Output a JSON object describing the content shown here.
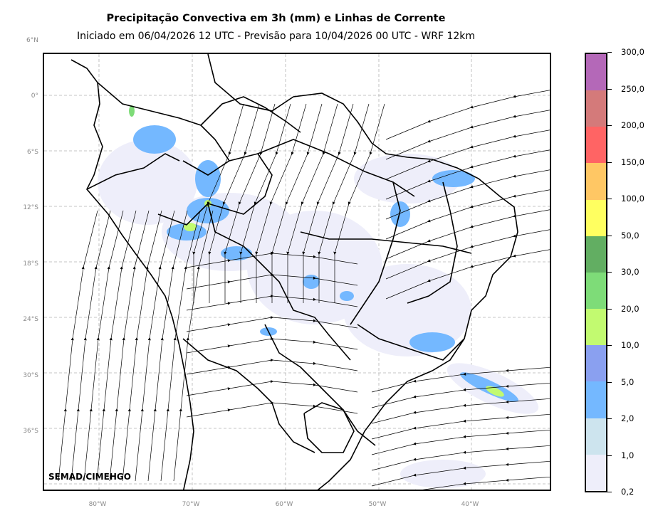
{
  "title": "Precipitação Convectiva em 3h (mm) e Linhas de Corrente",
  "subtitle": "Iniciado em 06/04/2026 12 UTC - Previsão para 10/04/2026 00 UTC - WRF 12km",
  "credit": "SEMAD/CIMEHGO",
  "lat_labels": [
    "6°N",
    "0°",
    "6°S",
    "12°S",
    "18°S",
    "24°S",
    "30°S",
    "36°S"
  ],
  "lon_labels": [
    "80°W",
    "70°W",
    "60°W",
    "50°W",
    "40°W"
  ],
  "colorbar": {
    "labels": [
      "0,2",
      "1,0",
      "2,0",
      "5,0",
      "10,0",
      "20,0",
      "30,0",
      "50,0",
      "100,0",
      "150,0",
      "200,0",
      "250,0",
      "300,0"
    ],
    "colors": [
      "#eeeefa",
      "#cde4ee",
      "#74b8ff",
      "#8aa0f0",
      "#c2fa70",
      "#7edc78",
      "#62ae62",
      "#ffff60",
      "#ffc764",
      "#ff6464",
      "#d47a7a",
      "#b468b8"
    ]
  },
  "map_colors": {
    "border": "#000000",
    "streamline": "#000000",
    "grid": "#b4b4b4"
  }
}
